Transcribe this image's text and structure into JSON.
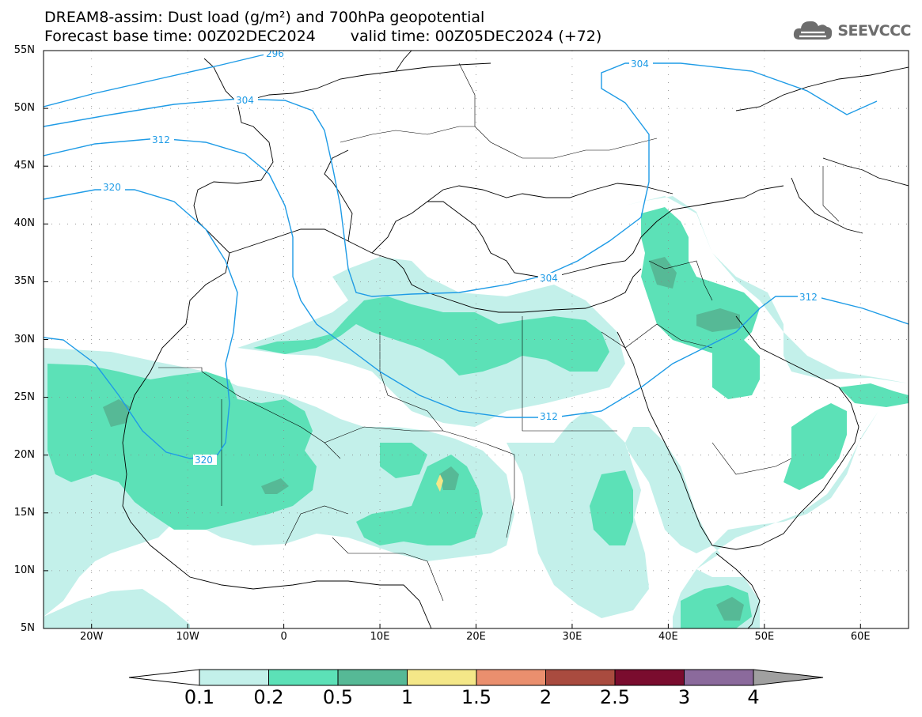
{
  "title": {
    "line1": "DREAM8-assim: Dust load (g/m²) and 700hPa geopotential",
    "forecast_base": "Forecast base time: 00Z02DEC2024",
    "valid_time": "valid time: 00Z05DEC2024 (+72)"
  },
  "logo": {
    "text": "SEEVCCC",
    "icon": "cloud-icon",
    "color": "#6d6d6d"
  },
  "map": {
    "lon_range": [
      -25,
      65
    ],
    "lat_range": [
      5,
      55
    ],
    "lat_ticks": [
      "55N",
      "50N",
      "45N",
      "40N",
      "35N",
      "30N",
      "25N",
      "20N",
      "15N",
      "10N",
      "5N"
    ],
    "lon_ticks": [
      "20W",
      "10W",
      "0",
      "10E",
      "20E",
      "30E",
      "40E",
      "50E",
      "60E"
    ],
    "contour_labels": [
      "296",
      "304",
      "312",
      "320",
      "304",
      "304",
      "312",
      "312",
      "320"
    ],
    "contour_color": "#1e9be6"
  },
  "colorbar": {
    "levels": [
      "0.1",
      "0.2",
      "0.5",
      "1",
      "1.5",
      "2",
      "2.5",
      "3",
      "4"
    ],
    "colors": [
      "#c3f0ea",
      "#5ce1b7",
      "#56b996",
      "#f4e788",
      "#ea8f6e",
      "#a94b3f",
      "#7a0c2e",
      "#8b6a9c"
    ],
    "overflow_color": "#a0a0a0"
  }
}
